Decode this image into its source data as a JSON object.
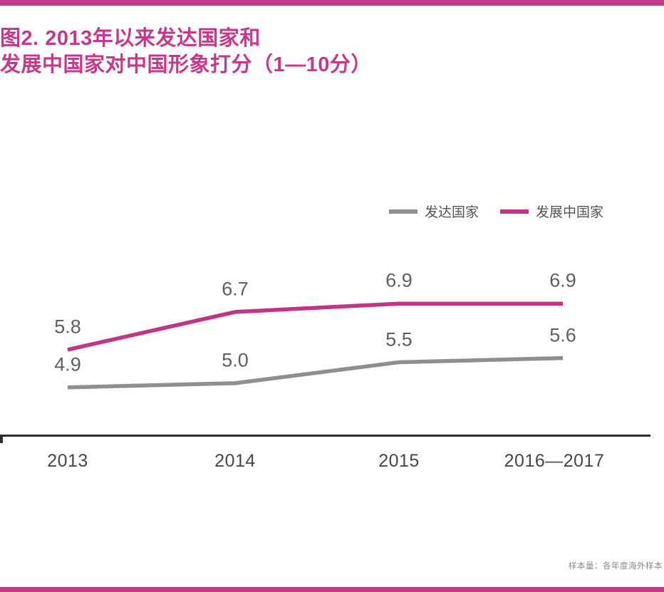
{
  "page": {
    "background": "#ffffff",
    "top_bar_color": "#c33c8c",
    "bottom_bar_color": "#c33c8c"
  },
  "title": {
    "line1": "图2. 2013年以来发达国家和",
    "line2": "发展中国家对中国形象打分（1—10分）",
    "color": "#c4398b"
  },
  "legend": {
    "items": [
      {
        "label": "发达国家",
        "color": "#8f8f8f"
      },
      {
        "label": "发展中国家",
        "color": "#c13584"
      }
    ]
  },
  "footnote": {
    "text": "样本量：各年度海外样本"
  },
  "chart_data": {
    "type": "line",
    "title": "图2. 2013年以来发达国家和发展中国家对中国形象打分（1—10分）",
    "categories": [
      "2013",
      "2014",
      "2015",
      "2016—2017"
    ],
    "series": [
      {
        "name": "发达国家",
        "color": "#8f8f8f",
        "values": [
          4.9,
          5.0,
          5.5,
          5.6
        ]
      },
      {
        "name": "发展中国家",
        "color": "#c13584",
        "values": [
          5.8,
          6.7,
          6.9,
          6.9
        ]
      }
    ],
    "xlabel": "",
    "ylabel": "",
    "ylim": [
      4.2,
      7.6
    ],
    "grid": false,
    "legend_position": "top-right",
    "data_labels": true,
    "axis_line_color": "#2e2e2e"
  }
}
